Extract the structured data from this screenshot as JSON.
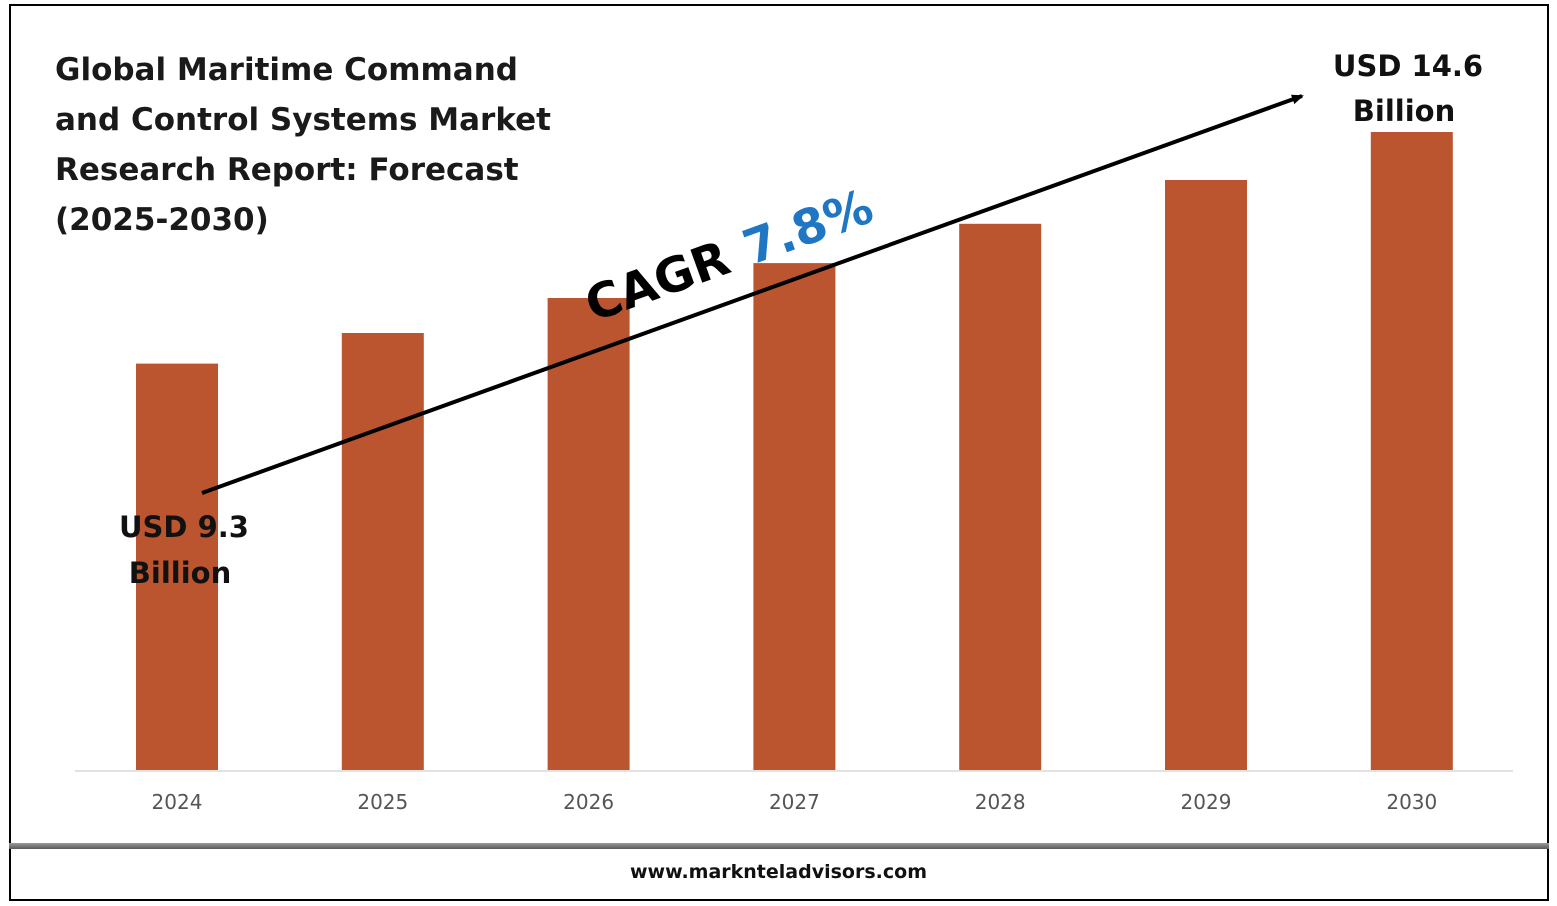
{
  "chart_data": {
    "type": "bar",
    "title_lines": [
      "Global Maritime Command",
      "and Control Systems Market",
      "Research Report: Forecast",
      "(2025-2030)"
    ],
    "categories": [
      "2024",
      "2025",
      "2026",
      "2027",
      "2028",
      "2029",
      "2030"
    ],
    "values": [
      9.3,
      10.0,
      10.8,
      11.6,
      12.5,
      13.5,
      14.6
    ],
    "ylim": [
      0,
      16
    ],
    "y_axis_visible": false,
    "grid": false,
    "bar_color": "#bb5530",
    "annotations": {
      "start_label": [
        "USD 9.3",
        "Billion"
      ],
      "end_label": [
        "USD 14.6",
        "Billion"
      ],
      "cagr_word": "CAGR",
      "cagr_value": "7.8%",
      "cagr_value_color": "#1f77c4"
    }
  },
  "footer": {
    "website": "www.marknteladvisors.com"
  }
}
